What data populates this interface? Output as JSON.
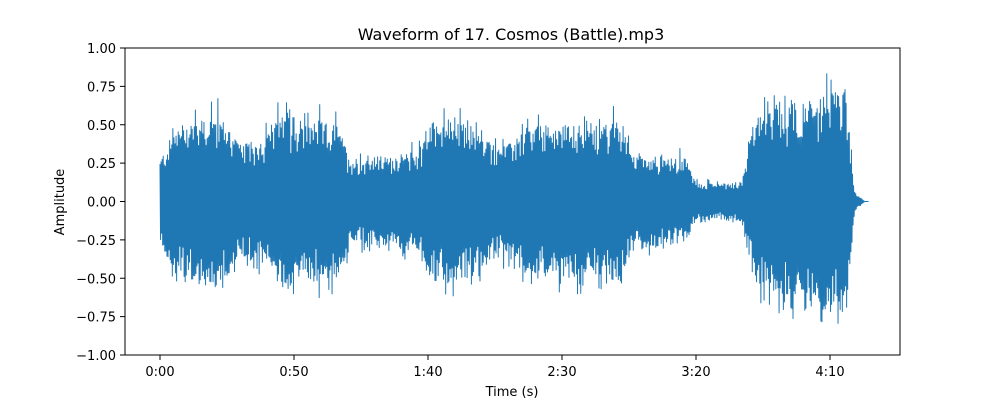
{
  "chart_data": {
    "type": "line",
    "title": "Waveform of 17. Cosmos (Battle).mp3",
    "xlabel": "Time (s)",
    "ylabel": "Amplitude",
    "xlim": [
      -8,
      222
    ],
    "ylim": [
      -1.0,
      1.0
    ],
    "grid": false,
    "legend": "none",
    "x_ticks": [
      {
        "value": 0,
        "label": "0:00"
      },
      {
        "value": 50,
        "label": "0:50"
      },
      {
        "value": 100,
        "label": "1:40"
      },
      {
        "value": 150,
        "label": "2:30"
      },
      {
        "value": 200,
        "label": "3:20"
      },
      {
        "value": 250,
        "label": "4:10"
      }
    ],
    "y_ticks": [
      {
        "value": 1.0,
        "label": "1.00"
      },
      {
        "value": 0.75,
        "label": "0.75"
      },
      {
        "value": 0.5,
        "label": "0.50"
      },
      {
        "value": 0.25,
        "label": "0.25"
      },
      {
        "value": 0.0,
        "label": "0.00"
      },
      {
        "value": -0.25,
        "label": "−0.25"
      },
      {
        "value": -0.5,
        "label": "−0.50"
      },
      {
        "value": -0.75,
        "label": "−0.75"
      },
      {
        "value": -1.0,
        "label": "−1.00"
      }
    ],
    "series": [
      {
        "color": "#1f77b4",
        "envelope": {
          "t": [
            0,
            5,
            10,
            15,
            20,
            25,
            30,
            35,
            40,
            45,
            48,
            50,
            53,
            58,
            62,
            66,
            71,
            76,
            81,
            86,
            91,
            96,
            101,
            106,
            111,
            116,
            121,
            126,
            131,
            136,
            141,
            146,
            151,
            156,
            161,
            166,
            171,
            176,
            181,
            186,
            191,
            196,
            200,
            202,
            206,
            212,
            217,
            222,
            226,
            229,
            231,
            233,
            236,
            238,
            241,
            244,
            247,
            250,
            253,
            256,
            258,
            259,
            260,
            262,
            263
          ],
          "peak": [
            0.33,
            0.55,
            0.65,
            0.66,
            0.7,
            0.62,
            0.45,
            0.47,
            0.53,
            0.68,
            0.7,
            0.62,
            0.6,
            0.65,
            0.62,
            0.61,
            0.35,
            0.34,
            0.36,
            0.35,
            0.38,
            0.4,
            0.63,
            0.67,
            0.62,
            0.61,
            0.5,
            0.45,
            0.46,
            0.56,
            0.61,
            0.58,
            0.6,
            0.62,
            0.56,
            0.62,
            0.63,
            0.41,
            0.37,
            0.36,
            0.34,
            0.35,
            0.15,
            0.14,
            0.15,
            0.15,
            0.16,
            0.68,
            0.68,
            0.73,
            0.82,
            0.68,
            0.9,
            0.7,
            0.87,
            0.72,
            0.84,
            0.89,
            0.88,
            0.9,
            0.35,
            0.12,
            0.05,
            0.02,
            0.0
          ]
        }
      }
    ]
  }
}
